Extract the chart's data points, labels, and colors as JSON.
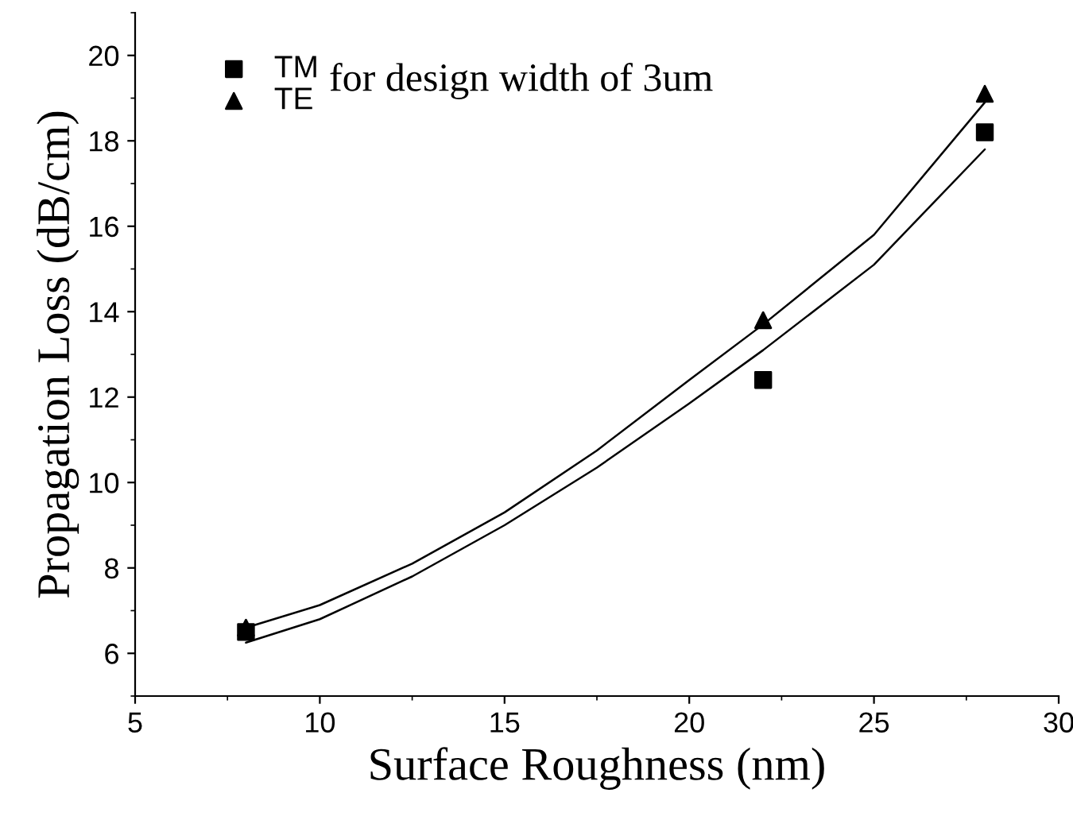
{
  "chart_data": {
    "type": "scatter",
    "xlabel": "Surface Roughness (nm)",
    "ylabel": "Propagation Loss (dB/cm)",
    "annotations": [
      "for design width of 3um"
    ],
    "x": [
      8,
      22,
      28
    ],
    "series": [
      {
        "name": "TM",
        "color": "#000000",
        "marker": "square",
        "values": [
          6.5,
          12.4,
          18.2
        ]
      },
      {
        "name": "TE",
        "color": "#000000",
        "marker": "triangle",
        "values": [
          6.6,
          13.8,
          19.1
        ]
      },
      {
        "type": "line",
        "color": "#000000",
        "marker": "none",
        "x": [
          8,
          10,
          12.5,
          15,
          17.5,
          20,
          22,
          25,
          28
        ],
        "values": [
          6.6,
          7.13,
          8.1,
          9.3,
          10.75,
          12.4,
          13.7,
          15.8,
          18.9
        ]
      },
      {
        "type": "line",
        "color": "#000000",
        "marker": "none",
        "x": [
          8,
          10,
          12.5,
          15,
          17.5,
          20,
          22,
          25,
          28
        ],
        "values": [
          6.25,
          6.8,
          7.8,
          9.0,
          10.35,
          11.85,
          13.1,
          15.1,
          17.8
        ]
      }
    ],
    "xlim": [
      5,
      30
    ],
    "xticks": [
      5,
      10,
      15,
      20,
      25,
      30
    ],
    "ylim": [
      5,
      21
    ],
    "yticks": [
      6,
      8,
      10,
      12,
      14,
      16,
      18,
      20
    ],
    "legend": "top left",
    "grid": false
  }
}
